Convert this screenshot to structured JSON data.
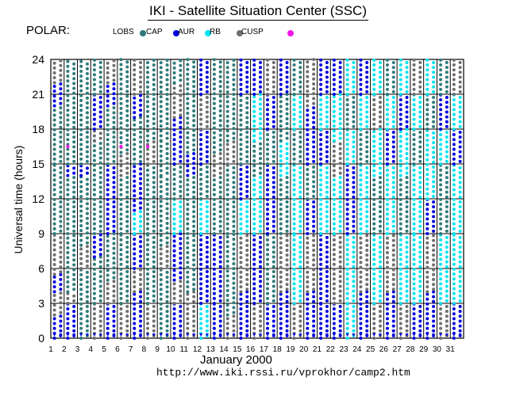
{
  "title": "IKI - Satellite Situation Center (SSC)",
  "satellite": "POLAR:",
  "legend": [
    {
      "label": "LOBS",
      "color": "#2e7b7b",
      "icon": "filled-circle"
    },
    {
      "label": "CAP",
      "color": "#0000e0",
      "icon": "filled-circle"
    },
    {
      "label": "AUR",
      "color": "#00e5f0",
      "icon": "filled-circle"
    },
    {
      "label": "RB",
      "color": "#6e6e6e",
      "icon": "filled-circle"
    },
    {
      "label": "CUSP",
      "color": "#f018e8",
      "icon": "filled-circle"
    }
  ],
  "month_label": "January    2000",
  "url": "http://www.iki.rssi.ru/vprokhor/camp2.htm",
  "chart_data": {
    "type": "scatter",
    "title": "IKI - Satellite Situation Center (SSC)",
    "xlabel": "January    2000",
    "ylabel": "Universal time  (hours)",
    "xlim": [
      1,
      32
    ],
    "ylim": [
      0,
      24
    ],
    "x_ticks": [
      "1",
      "2",
      "3",
      "4",
      "5",
      "6",
      "7",
      "8",
      "9",
      "10",
      "11",
      "12",
      "13",
      "14",
      "15",
      "16",
      "17",
      "18",
      "19",
      "20",
      "21",
      "22",
      "23",
      "24",
      "25",
      "26",
      "27",
      "28",
      "29",
      "30",
      "31"
    ],
    "y_ticks": [
      0,
      3,
      6,
      9,
      12,
      15,
      18,
      21,
      24
    ],
    "grid": true,
    "series": [
      {
        "name": "LOBS",
        "color": "#2e7b7b"
      },
      {
        "name": "CAP",
        "color": "#0000e0"
      },
      {
        "name": "AUR",
        "color": "#00e5f0"
      },
      {
        "name": "RB",
        "color": "#6e6e6e"
      },
      {
        "name": "CUSP",
        "color": "#f018e8"
      }
    ],
    "days": [
      {
        "day": 1,
        "segments": [
          [
            0,
            2,
            "CAP"
          ],
          [
            2,
            4,
            "RB"
          ],
          [
            4,
            5.5,
            "CAP"
          ],
          [
            5.5,
            9,
            "RB"
          ],
          [
            9,
            15,
            "LOBS"
          ],
          [
            15,
            20,
            "LOBS"
          ],
          [
            20,
            22,
            "CAP"
          ],
          [
            22,
            24,
            "RB"
          ]
        ]
      },
      {
        "day": 2,
        "segments": [
          [
            0,
            3,
            "CAP"
          ],
          [
            3,
            4,
            "RB"
          ],
          [
            4,
            9,
            "LOBS"
          ],
          [
            9,
            14,
            "LOBS"
          ],
          [
            14,
            15,
            "CAP"
          ],
          [
            15,
            24,
            "LOBS"
          ]
        ],
        "cusp": [
          16.5
        ]
      },
      {
        "day": 3,
        "segments": [
          [
            0,
            6,
            "LOBS"
          ],
          [
            6,
            8,
            "RB"
          ],
          [
            8,
            14,
            "LOBS"
          ],
          [
            14,
            15,
            "CAP"
          ],
          [
            15,
            24,
            "LOBS"
          ]
        ]
      },
      {
        "day": 4,
        "segments": [
          [
            0,
            3,
            "RB"
          ],
          [
            3,
            7,
            "LOBS"
          ],
          [
            7,
            9,
            "CAP"
          ],
          [
            9,
            17,
            "LOBS"
          ],
          [
            17,
            18,
            "RB"
          ],
          [
            18,
            21,
            "CAP"
          ],
          [
            21,
            24,
            "LOBS"
          ]
        ]
      },
      {
        "day": 5,
        "segments": [
          [
            0,
            3,
            "CAP"
          ],
          [
            3,
            5,
            "RB"
          ],
          [
            5,
            9,
            "LOBS"
          ],
          [
            9,
            15,
            "CAP"
          ],
          [
            15,
            20,
            "LOBS"
          ],
          [
            20,
            22,
            "CAP"
          ],
          [
            22,
            24,
            "RB"
          ]
        ]
      },
      {
        "day": 6,
        "segments": [
          [
            0,
            3,
            "RB"
          ],
          [
            3,
            9,
            "LOBS"
          ],
          [
            9,
            14,
            "LOBS"
          ],
          [
            14,
            16,
            "RB"
          ],
          [
            16,
            24,
            "LOBS"
          ]
        ],
        "cusp": [
          16.5
        ]
      },
      {
        "day": 7,
        "segments": [
          [
            0,
            4,
            "CAP"
          ],
          [
            4,
            6,
            "RB"
          ],
          [
            6,
            9,
            "CAP"
          ],
          [
            9,
            11,
            "AUR"
          ],
          [
            11,
            15,
            "CAP"
          ],
          [
            15,
            19,
            "LOBS"
          ],
          [
            19,
            21,
            "CAP"
          ],
          [
            21,
            24,
            "RB"
          ]
        ]
      },
      {
        "day": 8,
        "segments": [
          [
            0,
            3,
            "RB"
          ],
          [
            3,
            9,
            "LOBS"
          ],
          [
            9,
            15,
            "LOBS"
          ],
          [
            15,
            17,
            "RB"
          ],
          [
            17,
            24,
            "LOBS"
          ]
        ],
        "cusp": [
          16.5
        ]
      },
      {
        "day": 9,
        "segments": [
          [
            0,
            6,
            "LOBS"
          ],
          [
            6,
            8,
            "RB"
          ],
          [
            8,
            14,
            "LOBS"
          ],
          [
            14,
            17,
            "LOBS"
          ],
          [
            17,
            24,
            "LOBS"
          ]
        ]
      },
      {
        "day": 10,
        "segments": [
          [
            0,
            3,
            "CAP"
          ],
          [
            3,
            5,
            "RB"
          ],
          [
            5,
            9,
            "CAP"
          ],
          [
            9,
            12,
            "AUR"
          ],
          [
            12,
            15,
            "LOBS"
          ],
          [
            15,
            19,
            "CAP"
          ],
          [
            19,
            22,
            "RB"
          ],
          [
            22,
            24,
            "LOBS"
          ]
        ]
      },
      {
        "day": 11,
        "segments": [
          [
            0,
            4,
            "RB"
          ],
          [
            4,
            9,
            "LOBS"
          ],
          [
            9,
            14,
            "LOBS"
          ],
          [
            14,
            16,
            "CAP"
          ],
          [
            16,
            24,
            "LOBS"
          ]
        ]
      },
      {
        "day": 12,
        "segments": [
          [
            0,
            3,
            "AUR"
          ],
          [
            3,
            9,
            "CAP"
          ],
          [
            9,
            12,
            "AUR"
          ],
          [
            12,
            15,
            "LOBS"
          ],
          [
            15,
            18,
            "CAP"
          ],
          [
            18,
            21,
            "RB"
          ],
          [
            21,
            24,
            "CAP"
          ]
        ]
      },
      {
        "day": 13,
        "segments": [
          [
            0,
            3,
            "CAP"
          ],
          [
            3,
            9,
            "CAP"
          ],
          [
            9,
            14,
            "LOBS"
          ],
          [
            14,
            16,
            "RB"
          ],
          [
            16,
            24,
            "LOBS"
          ]
        ]
      },
      {
        "day": 14,
        "segments": [
          [
            0,
            2,
            "RB"
          ],
          [
            2,
            9,
            "LOBS"
          ],
          [
            9,
            15,
            "LOBS"
          ],
          [
            15,
            17,
            "RB"
          ],
          [
            17,
            24,
            "LOBS"
          ]
        ]
      },
      {
        "day": 15,
        "segments": [
          [
            0,
            4,
            "CAP"
          ],
          [
            4,
            9,
            "RB"
          ],
          [
            9,
            12,
            "AUR"
          ],
          [
            12,
            15,
            "CAP"
          ],
          [
            15,
            21,
            "LOBS"
          ],
          [
            21,
            24,
            "CAP"
          ]
        ]
      },
      {
        "day": 16,
        "segments": [
          [
            0,
            3,
            "RB"
          ],
          [
            3,
            9,
            "CAP"
          ],
          [
            9,
            14,
            "AUR"
          ],
          [
            14,
            17,
            "LOBS"
          ],
          [
            17,
            21,
            "AUR"
          ],
          [
            21,
            24,
            "CAP"
          ]
        ]
      },
      {
        "day": 17,
        "segments": [
          [
            0,
            3,
            "CAP"
          ],
          [
            3,
            9,
            "LOBS"
          ],
          [
            9,
            15,
            "CAP"
          ],
          [
            15,
            18,
            "LOBS"
          ],
          [
            18,
            21,
            "CAP"
          ],
          [
            21,
            24,
            "RB"
          ]
        ]
      },
      {
        "day": 18,
        "segments": [
          [
            0,
            4,
            "CAP"
          ],
          [
            4,
            9,
            "RB"
          ],
          [
            9,
            14,
            "LOBS"
          ],
          [
            14,
            17,
            "AUR"
          ],
          [
            17,
            21,
            "LOBS"
          ],
          [
            21,
            24,
            "CAP"
          ]
        ]
      },
      {
        "day": 19,
        "segments": [
          [
            0,
            3,
            "RB"
          ],
          [
            3,
            9,
            "AUR"
          ],
          [
            9,
            15,
            "AUR"
          ],
          [
            15,
            18,
            "LOBS"
          ],
          [
            18,
            21,
            "AUR"
          ],
          [
            21,
            24,
            "LOBS"
          ]
        ]
      },
      {
        "day": 20,
        "segments": [
          [
            0,
            4,
            "CAP"
          ],
          [
            4,
            9,
            "RB"
          ],
          [
            9,
            12,
            "CAP"
          ],
          [
            12,
            15,
            "LOBS"
          ],
          [
            15,
            20,
            "CAP"
          ],
          [
            20,
            24,
            "RB"
          ]
        ]
      },
      {
        "day": 21,
        "segments": [
          [
            0,
            3,
            "CAP"
          ],
          [
            3,
            9,
            "CAP"
          ],
          [
            9,
            15,
            "AUR"
          ],
          [
            15,
            18,
            "CAP"
          ],
          [
            18,
            21,
            "AUR"
          ],
          [
            21,
            24,
            "CAP"
          ]
        ]
      },
      {
        "day": 22,
        "segments": [
          [
            0,
            3,
            "CAP"
          ],
          [
            3,
            9,
            "RB"
          ],
          [
            9,
            14,
            "AUR"
          ],
          [
            14,
            17,
            "RB"
          ],
          [
            17,
            21,
            "AUR"
          ],
          [
            21,
            24,
            "CAP"
          ]
        ]
      },
      {
        "day": 23,
        "segments": [
          [
            0,
            3,
            "AUR"
          ],
          [
            3,
            9,
            "AUR"
          ],
          [
            9,
            15,
            "CAP"
          ],
          [
            15,
            18,
            "AUR"
          ],
          [
            18,
            21,
            "LOBS"
          ],
          [
            21,
            24,
            "AUR"
          ]
        ]
      },
      {
        "day": 24,
        "segments": [
          [
            0,
            4,
            "CAP"
          ],
          [
            4,
            9,
            "RB"
          ],
          [
            9,
            15,
            "AUR"
          ],
          [
            15,
            18,
            "LOBS"
          ],
          [
            18,
            21,
            "AUR"
          ],
          [
            21,
            24,
            "CAP"
          ]
        ]
      },
      {
        "day": 25,
        "segments": [
          [
            0,
            3,
            "RB"
          ],
          [
            3,
            9,
            "AUR"
          ],
          [
            9,
            14,
            "LOBS"
          ],
          [
            14,
            18,
            "AUR"
          ],
          [
            18,
            21,
            "RB"
          ],
          [
            21,
            24,
            "AUR"
          ]
        ]
      },
      {
        "day": 26,
        "segments": [
          [
            0,
            4,
            "CAP"
          ],
          [
            4,
            9,
            "RB"
          ],
          [
            9,
            15,
            "AUR"
          ],
          [
            15,
            18,
            "CAP"
          ],
          [
            18,
            21,
            "AUR"
          ],
          [
            21,
            24,
            "LOBS"
          ]
        ]
      },
      {
        "day": 27,
        "segments": [
          [
            0,
            3,
            "RB"
          ],
          [
            3,
            9,
            "AUR"
          ],
          [
            9,
            14,
            "LOBS"
          ],
          [
            14,
            18,
            "AUR"
          ],
          [
            18,
            21,
            "CAP"
          ],
          [
            21,
            24,
            "AUR"
          ]
        ]
      },
      {
        "day": 28,
        "segments": [
          [
            0,
            3,
            "CAP"
          ],
          [
            3,
            9,
            "AUR"
          ],
          [
            9,
            15,
            "AUR"
          ],
          [
            15,
            18,
            "LOBS"
          ],
          [
            18,
            21,
            "AUR"
          ],
          [
            21,
            24,
            "RB"
          ]
        ]
      },
      {
        "day": 29,
        "segments": [
          [
            0,
            4,
            "CAP"
          ],
          [
            4,
            9,
            "RB"
          ],
          [
            9,
            12,
            "CAP"
          ],
          [
            12,
            18,
            "AUR"
          ],
          [
            18,
            21,
            "LOBS"
          ],
          [
            21,
            24,
            "AUR"
          ]
        ]
      },
      {
        "day": 30,
        "segments": [
          [
            0,
            3,
            "RB"
          ],
          [
            3,
            9,
            "AUR"
          ],
          [
            9,
            15,
            "LOBS"
          ],
          [
            15,
            18,
            "AUR"
          ],
          [
            18,
            21,
            "CAP"
          ],
          [
            21,
            24,
            "LOBS"
          ]
        ]
      },
      {
        "day": 31,
        "segments": [
          [
            0,
            3,
            "CAP"
          ],
          [
            3,
            9,
            "AUR"
          ],
          [
            9,
            15,
            "AUR"
          ],
          [
            15,
            18,
            "CAP"
          ],
          [
            18,
            21,
            "AUR"
          ],
          [
            21,
            24,
            "RB"
          ]
        ]
      }
    ]
  }
}
